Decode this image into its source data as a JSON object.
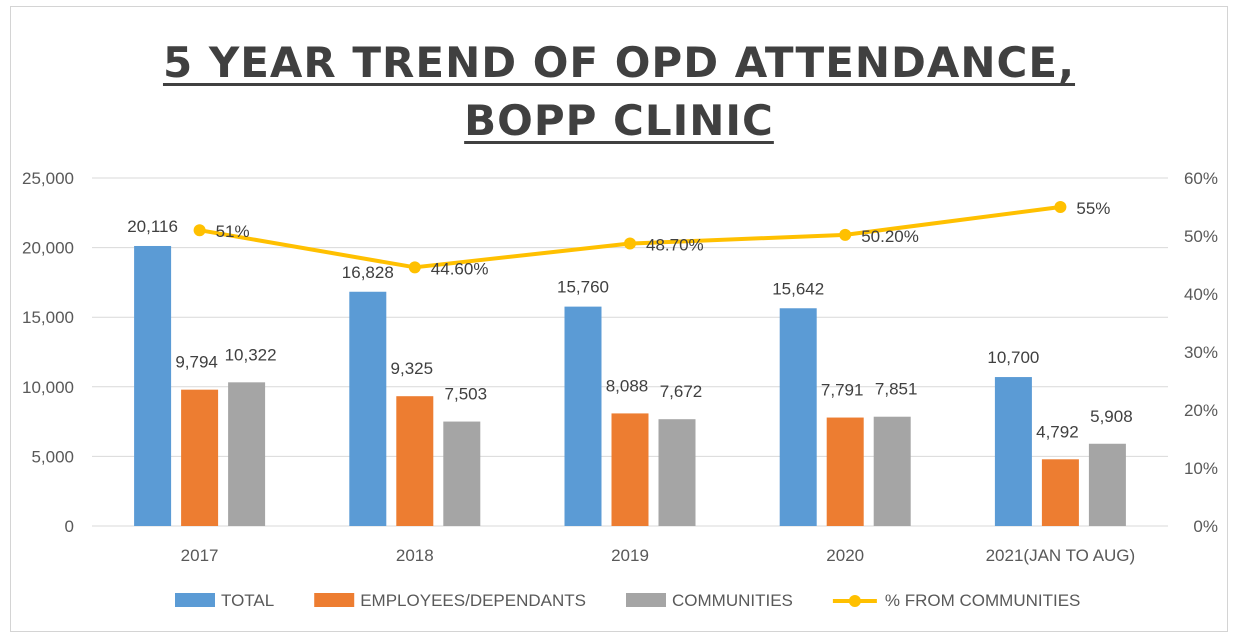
{
  "chart_data": {
    "type": "bar",
    "title_line1": "5 YEAR TREND OF OPD ATTENDANCE,",
    "title_line2": "BOPP CLINIC",
    "categories": [
      "2017",
      "2018",
      "2019",
      "2020",
      "2021(JAN TO AUG)"
    ],
    "series": [
      {
        "name": "TOTAL",
        "values": [
          20116,
          16828,
          15760,
          15642,
          10700
        ],
        "labels": [
          "20,116",
          "16,828",
          "15,760",
          "15,642",
          "10,700"
        ],
        "color": "#5b9bd5"
      },
      {
        "name": "EMPLOYEES/DEPENDANTS",
        "values": [
          9794,
          9325,
          8088,
          7791,
          4792
        ],
        "labels": [
          "9,794",
          "9,325",
          "8,088",
          "7,791",
          "4,792"
        ],
        "color": "#ed7d31"
      },
      {
        "name": "COMMUNITIES",
        "values": [
          10322,
          7503,
          7672,
          7851,
          5908
        ],
        "labels": [
          "10,322",
          "7,503",
          "7,672",
          "7,851",
          "5,908"
        ],
        "color": "#a5a5a5"
      }
    ],
    "line_series": {
      "name": "% FROM COMMUNITIES",
      "values": [
        51,
        44.6,
        48.7,
        50.2,
        55
      ],
      "labels": [
        "51%",
        "44.60%",
        "48.70%",
        "50.20%",
        "55%"
      ],
      "color": "#ffc000",
      "axis": "secondary"
    },
    "ylim": [
      0,
      25000
    ],
    "y_ticks": [
      "0",
      "5,000",
      "10,000",
      "15,000",
      "20,000",
      "25,000"
    ],
    "y2lim": [
      0,
      60
    ],
    "y2_ticks": [
      "0%",
      "10%",
      "20%",
      "30%",
      "40%",
      "50%",
      "60%"
    ],
    "legend_position": "bottom"
  }
}
